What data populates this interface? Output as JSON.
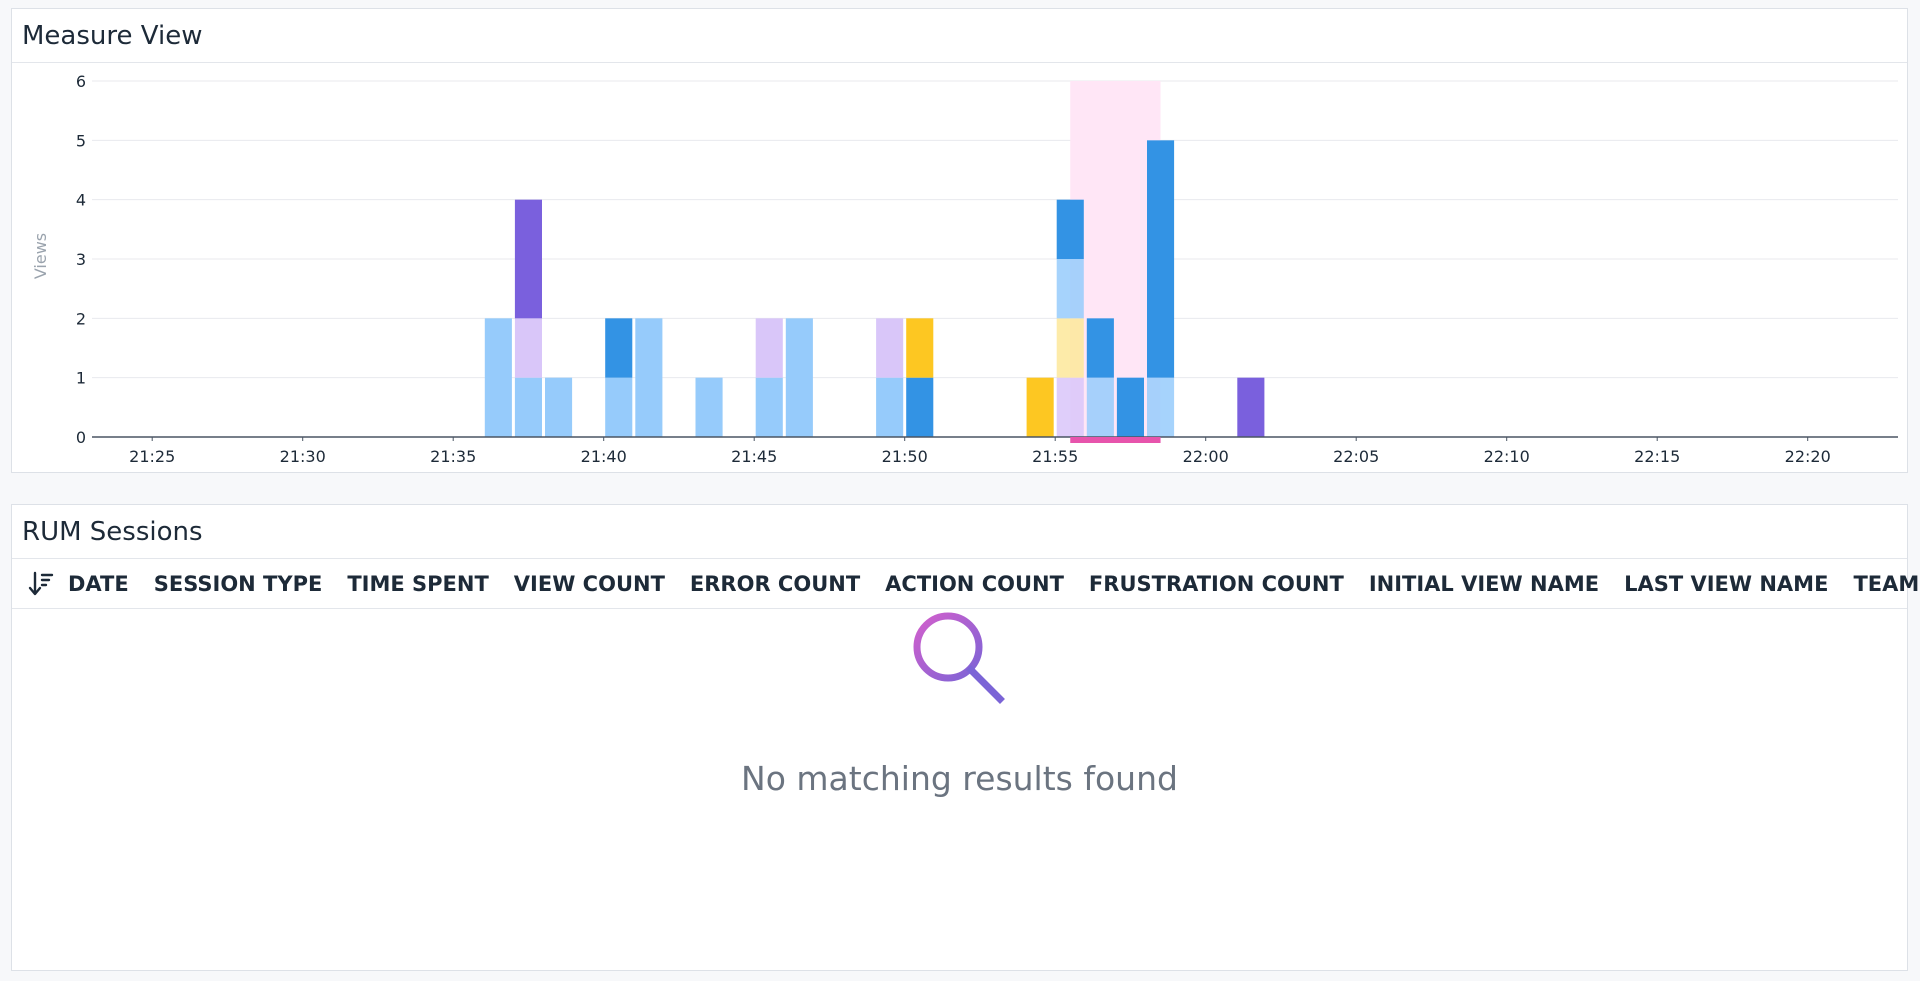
{
  "measure_view": {
    "title": "Measure View"
  },
  "chart_data": {
    "type": "bar",
    "stacked": true,
    "ylabel": "Views",
    "ylim": [
      0,
      6
    ],
    "yticks": [
      "0",
      "1",
      "2",
      "3",
      "4",
      "5",
      "6"
    ],
    "xticks": [
      "21:25",
      "21:30",
      "21:35",
      "21:40",
      "21:45",
      "21:50",
      "21:55",
      "22:00",
      "22:05",
      "22:10",
      "22:15",
      "22:20"
    ],
    "x_start": "21:23",
    "x_end": "22:23",
    "bin_minutes": 1,
    "grid": true,
    "highlight_range": [
      "21:55:30",
      "21:58:30"
    ],
    "colors": {
      "light_blue": "#96cbfb",
      "blue": "#3393e4",
      "purple": "#7a60dd",
      "lavender": "#d9c6f9",
      "yellow": "#fdc722",
      "light_yellow": "#fde89a",
      "highlight": "#ffe6f6",
      "highlight_bar": "#e754ac",
      "axis": "#4a5563"
    },
    "bars": [
      {
        "time": "21:36",
        "segments": [
          {
            "color": "light_blue",
            "value": 2
          }
        ]
      },
      {
        "time": "21:37",
        "segments": [
          {
            "color": "light_blue",
            "value": 1
          },
          {
            "color": "lavender",
            "value": 1
          },
          {
            "color": "purple",
            "value": 2
          }
        ]
      },
      {
        "time": "21:38",
        "segments": [
          {
            "color": "light_blue",
            "value": 1
          }
        ]
      },
      {
        "time": "21:40",
        "segments": [
          {
            "color": "light_blue",
            "value": 1
          },
          {
            "color": "blue",
            "value": 1
          }
        ]
      },
      {
        "time": "21:41",
        "segments": [
          {
            "color": "light_blue",
            "value": 2
          }
        ]
      },
      {
        "time": "21:43",
        "segments": [
          {
            "color": "light_blue",
            "value": 1
          }
        ]
      },
      {
        "time": "21:45",
        "segments": [
          {
            "color": "light_blue",
            "value": 1
          },
          {
            "color": "lavender",
            "value": 1
          }
        ]
      },
      {
        "time": "21:46",
        "segments": [
          {
            "color": "light_blue",
            "value": 2
          }
        ]
      },
      {
        "time": "21:49",
        "segments": [
          {
            "color": "light_blue",
            "value": 1
          },
          {
            "color": "lavender",
            "value": 1
          }
        ]
      },
      {
        "time": "21:50",
        "segments": [
          {
            "color": "blue",
            "value": 1
          },
          {
            "color": "yellow",
            "value": 1
          }
        ]
      },
      {
        "time": "21:54",
        "segments": [
          {
            "color": "yellow",
            "value": 1
          }
        ]
      },
      {
        "time": "21:55",
        "segments": [
          {
            "color": "lavender",
            "value": 1
          },
          {
            "color": "light_yellow",
            "value": 1
          },
          {
            "color": "light_blue",
            "value": 1
          },
          {
            "color": "blue",
            "value": 1
          }
        ]
      },
      {
        "time": "21:56",
        "segments": [
          {
            "color": "light_blue",
            "value": 1
          },
          {
            "color": "blue",
            "value": 1
          }
        ]
      },
      {
        "time": "21:57",
        "segments": [
          {
            "color": "blue",
            "value": 1
          }
        ]
      },
      {
        "time": "21:58",
        "segments": [
          {
            "color": "light_blue",
            "value": 1
          },
          {
            "color": "blue",
            "value": 4
          }
        ]
      },
      {
        "time": "22:01",
        "segments": [
          {
            "color": "purple",
            "value": 1
          }
        ]
      }
    ]
  },
  "rum_sessions": {
    "title": "RUM Sessions",
    "sort_icon": "sort-descending-icon",
    "columns": [
      "DATE",
      "SESSION TYPE",
      "TIME SPENT",
      "VIEW COUNT",
      "ERROR COUNT",
      "ACTION COUNT",
      "FRUSTRATION COUNT",
      "INITIAL VIEW NAME",
      "LAST VIEW NAME",
      "TEAMS"
    ],
    "empty_icon": "search-icon",
    "empty_message": "No matching results found"
  }
}
